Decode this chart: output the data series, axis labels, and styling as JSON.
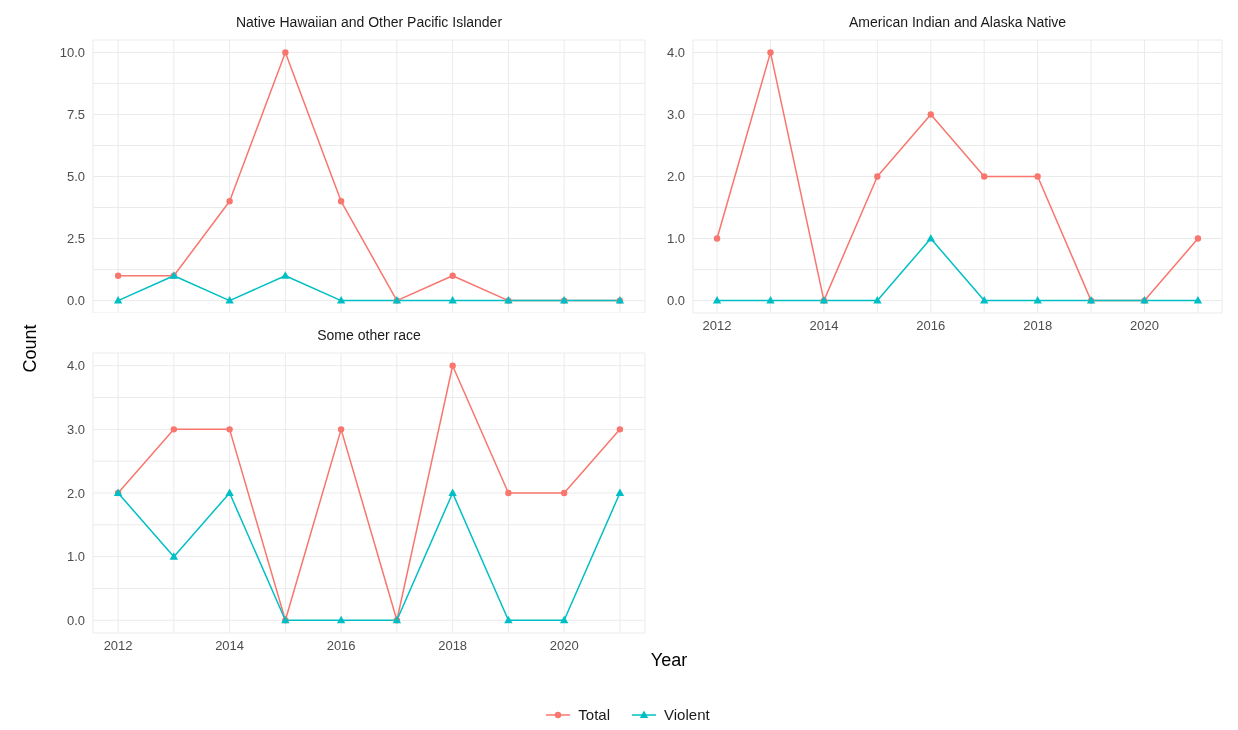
{
  "chart_data": [
    {
      "type": "line",
      "title": "Native Hawaiian and Other Pacific Islander",
      "x": [
        2012,
        2013,
        2014,
        2015,
        2016,
        2017,
        2018,
        2019,
        2020,
        2021
      ],
      "xlim": [
        2011.55,
        2021.45
      ],
      "xticks": [
        2012,
        {
          "value": 2013,
          "label": null
        },
        2014,
        {
          "value": 2015,
          "label": null
        },
        2016,
        {
          "value": 2017,
          "label": null
        },
        2018,
        {
          "value": 2019,
          "label": null
        },
        2020,
        {
          "value": 2021,
          "label": null
        }
      ],
      "ylim": [
        -0.5,
        10.5
      ],
      "yticks": [
        {
          "value": 0,
          "label": "0.0"
        },
        {
          "value": 1.25,
          "label": null
        },
        {
          "value": 2.5,
          "label": "2.5"
        },
        {
          "value": 3.75,
          "label": null
        },
        {
          "value": 5,
          "label": "5.0"
        },
        {
          "value": 6.25,
          "label": null
        },
        {
          "value": 7.5,
          "label": "7.5"
        },
        {
          "value": 8.75,
          "label": null
        },
        {
          "value": 10,
          "label": "10.0"
        }
      ],
      "tick_labels": "y",
      "grid": true,
      "legend": "bottom",
      "series": [
        {
          "name": "Total",
          "color": "#f8766d",
          "marker": "circle",
          "values": [
            1,
            1,
            4,
            10,
            4,
            0,
            1,
            0,
            0,
            0
          ]
        },
        {
          "name": "Violent",
          "color": "#00bfc4",
          "marker": "triangle",
          "values": [
            0,
            1,
            0,
            1,
            0,
            0,
            0,
            0,
            0,
            0
          ]
        }
      ]
    },
    {
      "type": "line",
      "title": "American Indian and Alaska Native",
      "x": [
        2012,
        2013,
        2014,
        2015,
        2016,
        2017,
        2018,
        2019,
        2020,
        2021
      ],
      "xlim": [
        2011.55,
        2021.45
      ],
      "xticks": [
        2012,
        {
          "value": 2013,
          "label": null
        },
        2014,
        {
          "value": 2015,
          "label": null
        },
        2016,
        {
          "value": 2017,
          "label": null
        },
        2018,
        {
          "value": 2019,
          "label": null
        },
        2020,
        {
          "value": 2021,
          "label": null
        }
      ],
      "ylim": [
        -0.2,
        4.2
      ],
      "yticks": [
        {
          "value": 0,
          "label": "0.0"
        },
        {
          "value": 0.5,
          "label": null
        },
        {
          "value": 1,
          "label": "1.0"
        },
        {
          "value": 1.5,
          "label": null
        },
        {
          "value": 2,
          "label": "2.0"
        },
        {
          "value": 2.5,
          "label": null
        },
        {
          "value": 3,
          "label": "3.0"
        },
        {
          "value": 3.5,
          "label": null
        },
        {
          "value": 4,
          "label": "4.0"
        }
      ],
      "grid": true,
      "legend": "bottom",
      "series": [
        {
          "name": "Total",
          "color": "#f8766d",
          "marker": "circle",
          "values": [
            1,
            4,
            0,
            2,
            3,
            2,
            2,
            0,
            0,
            1
          ]
        },
        {
          "name": "Violent",
          "color": "#00bfc4",
          "marker": "triangle",
          "values": [
            0,
            0,
            0,
            0,
            1,
            0,
            0,
            0,
            0,
            0
          ]
        }
      ]
    },
    {
      "type": "line",
      "title": "Some other race",
      "xlabel": "Year",
      "ylabel": "Count",
      "legend": "bottom",
      "x": [
        2012,
        2013,
        2014,
        2015,
        2016,
        2017,
        2018,
        2019,
        2020,
        2021
      ],
      "xlim": [
        2011.55,
        2021.45
      ],
      "xticks": [
        2012,
        {
          "value": 2013,
          "label": null
        },
        2014,
        {
          "value": 2015,
          "label": null
        },
        2016,
        {
          "value": 2017,
          "label": null
        },
        2018,
        {
          "value": 2019,
          "label": null
        },
        2020,
        {
          "value": 2021,
          "label": null
        }
      ],
      "ylim": [
        -0.2,
        4.2
      ],
      "yticks": [
        {
          "value": 0,
          "label": "0.0"
        },
        {
          "value": 0.5,
          "label": null
        },
        {
          "value": 1,
          "label": "1.0"
        },
        {
          "value": 1.5,
          "label": null
        },
        {
          "value": 2,
          "label": "2.0"
        },
        {
          "value": 2.5,
          "label": null
        },
        {
          "value": 3,
          "label": "3.0"
        },
        {
          "value": 3.5,
          "label": null
        },
        {
          "value": 4,
          "label": "4.0"
        }
      ],
      "grid": true,
      "series": [
        {
          "name": "Total",
          "color": "#f8766d",
          "marker": "circle",
          "values": [
            2,
            3,
            3,
            0,
            3,
            0,
            4,
            2,
            2,
            3
          ]
        },
        {
          "name": "Violent",
          "color": "#00bfc4",
          "marker": "triangle",
          "values": [
            2,
            1,
            2,
            0,
            0,
            0,
            2,
            0,
            0,
            2
          ]
        }
      ]
    }
  ]
}
